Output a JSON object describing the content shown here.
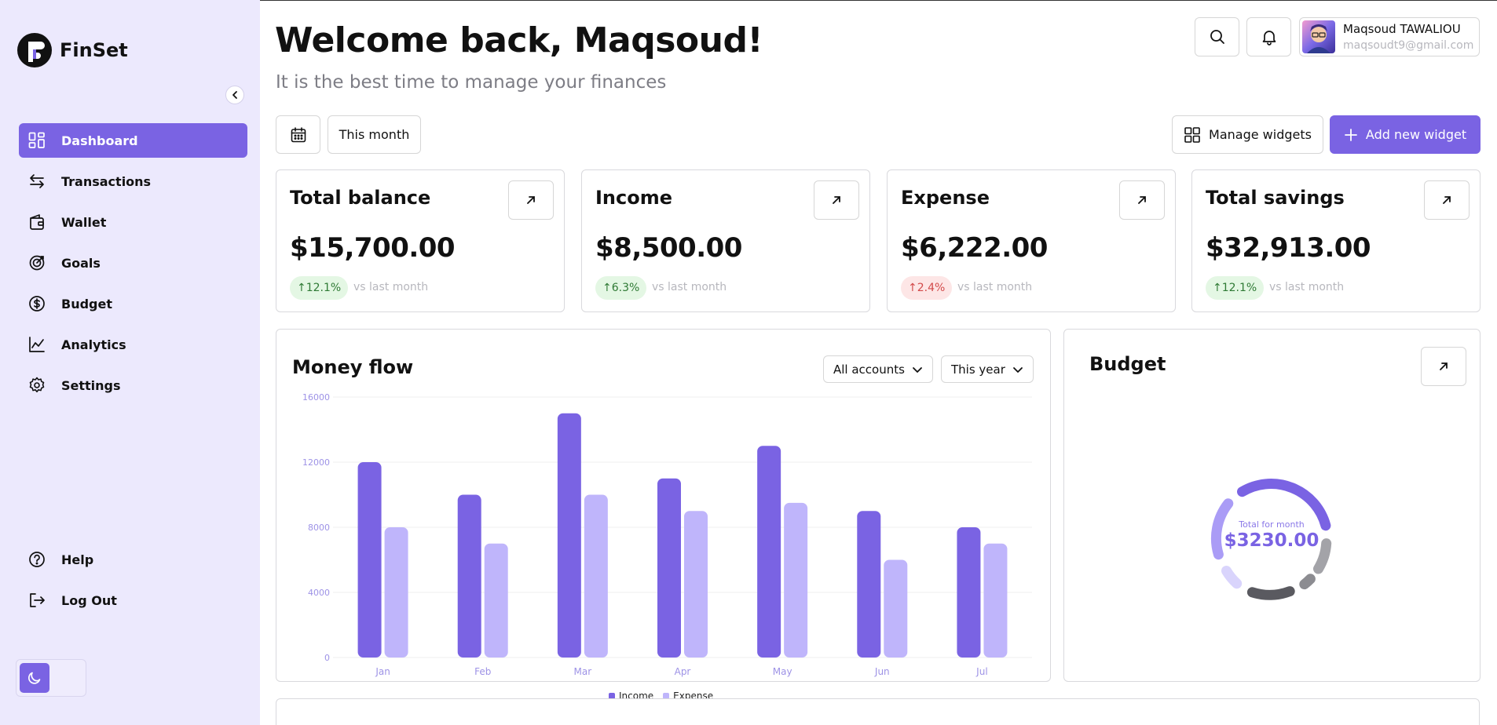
{
  "app": {
    "name": "FinSet"
  },
  "sidebar": {
    "items": [
      {
        "label": "Dashboard",
        "icon": "dashboard-icon",
        "active": true
      },
      {
        "label": "Transactions",
        "icon": "transactions-icon"
      },
      {
        "label": "Wallet",
        "icon": "wallet-icon"
      },
      {
        "label": "Goals",
        "icon": "goals-icon"
      },
      {
        "label": "Budget",
        "icon": "budget-icon"
      },
      {
        "label": "Analytics",
        "icon": "analytics-icon"
      },
      {
        "label": "Settings",
        "icon": "settings-icon"
      }
    ],
    "bottom_items": [
      {
        "label": "Help",
        "icon": "help-icon"
      },
      {
        "label": "Log Out",
        "icon": "logout-icon"
      }
    ]
  },
  "header": {
    "title": "Welcome back, Maqsoud!",
    "subtitle": "It is the best time to manage your finances",
    "user": {
      "name": "Maqsoud TAWALIOU",
      "email": "maqsoudt9@gmail.com"
    }
  },
  "toolbar": {
    "period": "This month",
    "manage_widgets": "Manage widgets",
    "add_widget": "Add new widget"
  },
  "cards": [
    {
      "title": "Total balance",
      "value": "$15,700.00",
      "change": "12.1%",
      "trend": "up",
      "compare": "vs last month"
    },
    {
      "title": "Income",
      "value": "$8,500.00",
      "change": "6.3%",
      "trend": "up",
      "compare": "vs last month"
    },
    {
      "title": "Expense",
      "value": "$6,222.00",
      "change": "2.4%",
      "trend": "down",
      "compare": "vs last month"
    },
    {
      "title": "Total savings",
      "value": "$32,913.00",
      "change": "12.1%",
      "trend": "up",
      "compare": "vs last month"
    }
  ],
  "money_flow": {
    "title": "Money flow",
    "accounts_filter": "All accounts",
    "period_filter": "This year"
  },
  "budget": {
    "title": "Budget",
    "center_label": "Total for month",
    "center_value": "$3230.00"
  },
  "colors": {
    "accent": "#7a63e3",
    "income": "#7a63e3",
    "expense": "#bfb5fb",
    "sidebar_bg": "#ece9fd"
  },
  "chart_data": {
    "type": "bar",
    "categories": [
      "Jan",
      "Feb",
      "Mar",
      "Apr",
      "May",
      "Jun",
      "Jul"
    ],
    "series": [
      {
        "name": "Income",
        "values": [
          12000,
          10000,
          15000,
          11000,
          13000,
          9000,
          8000
        ]
      },
      {
        "name": "Expense",
        "values": [
          8000,
          7000,
          10000,
          9000,
          9500,
          6000,
          7000
        ]
      }
    ],
    "yticks": [
      0,
      4000,
      8000,
      12000,
      16000
    ],
    "ylim": [
      0,
      16000
    ],
    "grid": true,
    "legend": "bottom"
  }
}
